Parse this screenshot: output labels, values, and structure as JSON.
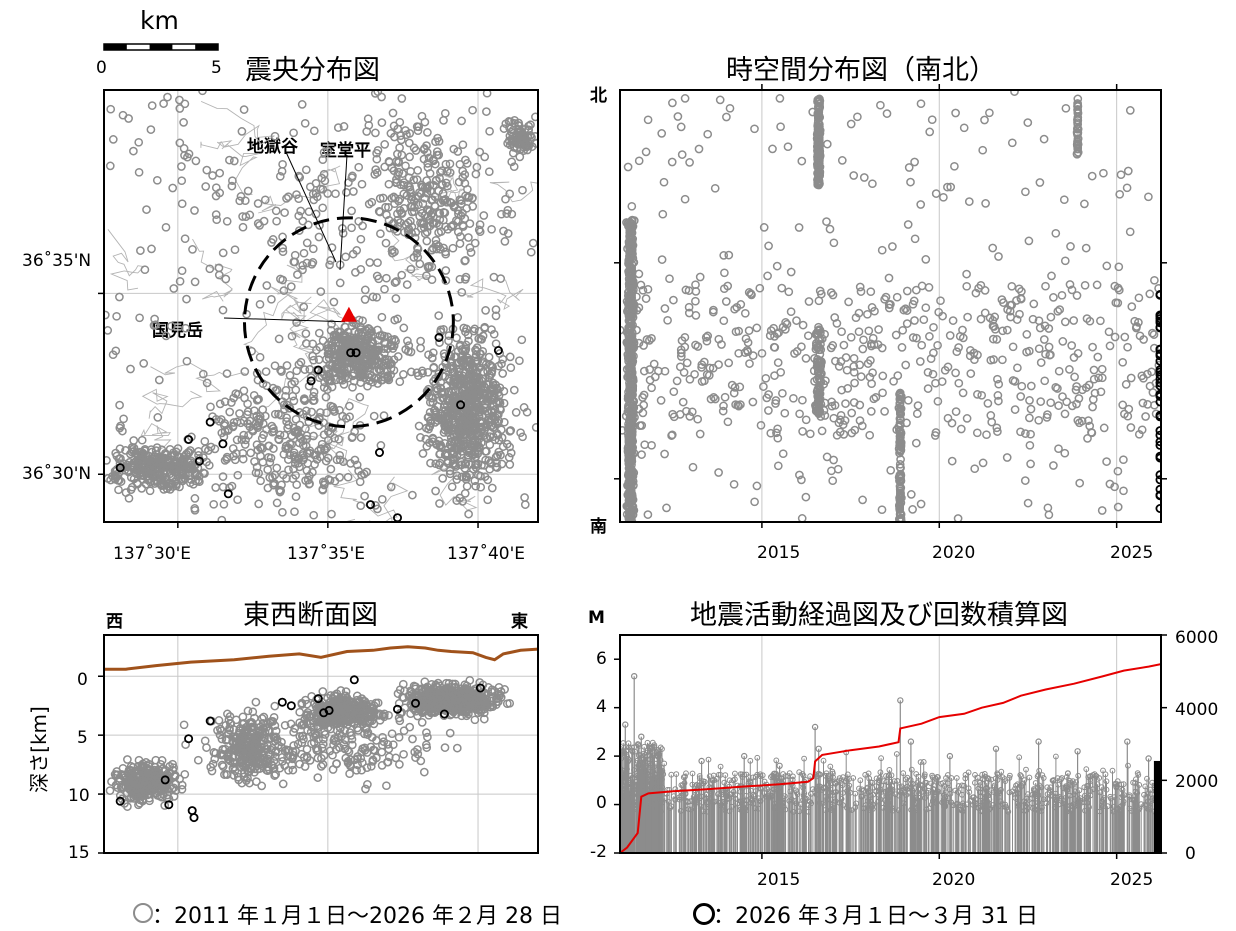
{
  "scalebar": {
    "unit": "km",
    "start": "0",
    "end": "5"
  },
  "legend": {
    "period1": "：2011 年１月１日～2026 年２月 28 日",
    "period2": "：2026 年３月１日～３月 31 日",
    "period1_color": "#8c8c8c",
    "period2_color": "#000000"
  },
  "colors": {
    "gray": "#8c8c8c",
    "red": "#e60000",
    "brown": "#a0521b",
    "grid": "#c8c8c8"
  },
  "chart_data": [
    {
      "id": "epicenter",
      "type": "scatter",
      "title": "震央分布図",
      "x_tick_labels": [
        "137˚30'E",
        "137˚35'E",
        "137˚40'E"
      ],
      "y_tick_labels": [
        "36˚35'N",
        "36˚30'N"
      ],
      "xlim_lon": [
        137.459,
        137.7
      ],
      "ylim_lat": [
        36.478,
        36.677
      ],
      "labels": {
        "jigokudani": "地獄谷",
        "murodo": "室堂平",
        "kunimi": "国見岳"
      },
      "volcano": {
        "lon": 137.595,
        "lat": 36.573
      },
      "circle_center": {
        "lon": 137.595,
        "lat": 36.57
      },
      "circle_radius_deg_lon": 0.058,
      "clusters": [
        {
          "lon": 137.66,
          "lat": 36.53,
          "w": 0.03,
          "h": 0.05,
          "n": 700
        },
        {
          "lon": 137.6,
          "lat": 36.555,
          "w": 0.035,
          "h": 0.02,
          "n": 350
        },
        {
          "lon": 137.64,
          "lat": 36.625,
          "w": 0.04,
          "h": 0.05,
          "n": 250
        },
        {
          "lon": 137.49,
          "lat": 36.503,
          "w": 0.04,
          "h": 0.015,
          "n": 300
        },
        {
          "lon": 137.56,
          "lat": 36.52,
          "w": 0.06,
          "h": 0.05,
          "n": 300
        },
        {
          "lon": 137.69,
          "lat": 36.655,
          "w": 0.012,
          "h": 0.012,
          "n": 80
        },
        {
          "lon": 137.58,
          "lat": 36.62,
          "w": 0.12,
          "h": 0.06,
          "n": 140
        }
      ],
      "recent_points": [
        [
          137.468,
          36.503
        ],
        [
          137.512,
          36.506
        ],
        [
          137.506,
          36.516
        ],
        [
          137.518,
          36.524
        ],
        [
          137.525,
          36.514
        ],
        [
          137.528,
          36.491
        ],
        [
          137.574,
          36.543
        ],
        [
          137.578,
          36.548
        ],
        [
          137.596,
          36.556
        ],
        [
          137.599,
          36.556
        ],
        [
          137.612,
          36.51
        ],
        [
          137.622,
          36.48
        ],
        [
          137.607,
          36.486
        ],
        [
          137.645,
          36.563
        ],
        [
          137.657,
          36.532
        ],
        [
          137.678,
          36.557
        ]
      ]
    },
    {
      "id": "spacetime",
      "type": "scatter",
      "title": "時空間分布図（南北）",
      "x_ticks": [
        2015,
        2020,
        2025
      ],
      "xlim": [
        2011.0,
        2026.25
      ],
      "y_top_label": "北",
      "y_bottom_label": "南",
      "swarms": [
        {
          "t": 2011.3,
          "dt": 0.25,
          "y0": 0.0,
          "y1": 0.7,
          "n": 550
        },
        {
          "t": 2016.6,
          "dt": 0.12,
          "y0": 0.78,
          "y1": 0.98,
          "n": 180
        },
        {
          "t": 2018.9,
          "dt": 0.1,
          "y0": 0.0,
          "y1": 0.3,
          "n": 100
        },
        {
          "t": 2016.6,
          "dt": 0.25,
          "y0": 0.25,
          "y1": 0.45,
          "n": 80
        },
        {
          "t": 2023.9,
          "dt": 0.06,
          "y0": 0.85,
          "y1": 0.98,
          "n": 40
        }
      ]
    },
    {
      "id": "ew_section",
      "type": "scatter",
      "title": "東西断面図",
      "left_label": "西",
      "right_label": "東",
      "ylabel": "深さ[km]",
      "y_ticks": [
        0,
        5,
        10,
        15
      ],
      "ylim": [
        -3.5,
        15
      ],
      "xlim_lon": [
        137.459,
        137.7
      ],
      "topography_km": [
        [
          0,
          -0.6
        ],
        [
          0.05,
          -0.6
        ],
        [
          0.12,
          -0.9
        ],
        [
          0.2,
          -1.2
        ],
        [
          0.3,
          -1.4
        ],
        [
          0.38,
          -1.7
        ],
        [
          0.45,
          -1.9
        ],
        [
          0.5,
          -1.6
        ],
        [
          0.56,
          -2.1
        ],
        [
          0.62,
          -2.2
        ],
        [
          0.66,
          -2.4
        ],
        [
          0.7,
          -2.5
        ],
        [
          0.74,
          -2.4
        ],
        [
          0.77,
          -2.2
        ],
        [
          0.8,
          -2.1
        ],
        [
          0.85,
          -2.0
        ],
        [
          0.88,
          -1.6
        ],
        [
          0.9,
          -1.4
        ],
        [
          0.92,
          -1.9
        ],
        [
          0.96,
          -2.2
        ],
        [
          1.0,
          -2.3
        ]
      ],
      "recent_points": [
        [
          137.468,
          10.6
        ],
        [
          137.493,
          8.8
        ],
        [
          137.495,
          10.9
        ],
        [
          137.506,
          5.3
        ],
        [
          137.508,
          11.4
        ],
        [
          137.509,
          12.0
        ],
        [
          137.518,
          3.8
        ],
        [
          137.558,
          2.2
        ],
        [
          137.563,
          2.5
        ],
        [
          137.578,
          1.9
        ],
        [
          137.581,
          3.1
        ],
        [
          137.584,
          2.9
        ],
        [
          137.598,
          0.3
        ],
        [
          137.622,
          2.8
        ],
        [
          137.632,
          2.3
        ],
        [
          137.648,
          3.2
        ],
        [
          137.668,
          1.0
        ]
      ]
    },
    {
      "id": "mt",
      "type": "bar",
      "title": "地震活動経過図及び回数積算図",
      "ylabel_left": "M",
      "x_ticks": [
        2015,
        2020,
        2025
      ],
      "xlim": [
        2011.0,
        2026.25
      ],
      "y_ticks_left": [
        -2,
        0,
        2,
        4,
        6
      ],
      "ylim_left": [
        -2,
        7
      ],
      "y_ticks_right": [
        0,
        2000,
        4000,
        6000
      ],
      "ylim_right": [
        0,
        6000
      ],
      "cumulative": [
        [
          2011.0,
          0
        ],
        [
          2011.2,
          150
        ],
        [
          2011.5,
          550
        ],
        [
          2011.6,
          1550
        ],
        [
          2011.8,
          1640
        ],
        [
          2012.5,
          1700
        ],
        [
          2013.5,
          1760
        ],
        [
          2014.5,
          1830
        ],
        [
          2015.5,
          1890
        ],
        [
          2016.3,
          1960
        ],
        [
          2016.45,
          2060
        ],
        [
          2016.5,
          2520
        ],
        [
          2016.7,
          2700
        ],
        [
          2017.5,
          2830
        ],
        [
          2018.3,
          2930
        ],
        [
          2018.85,
          3050
        ],
        [
          2018.9,
          3430
        ],
        [
          2019.5,
          3560
        ],
        [
          2020.0,
          3740
        ],
        [
          2020.7,
          3830
        ],
        [
          2021.2,
          4000
        ],
        [
          2021.8,
          4130
        ],
        [
          2022.3,
          4330
        ],
        [
          2023.0,
          4500
        ],
        [
          2023.8,
          4660
        ],
        [
          2024.6,
          4860
        ],
        [
          2025.2,
          5020
        ],
        [
          2025.9,
          5130
        ],
        [
          2026.25,
          5200
        ]
      ],
      "peaks": [
        [
          2011.4,
          5.3
        ],
        [
          2011.15,
          3.3
        ],
        [
          2011.6,
          2.8
        ],
        [
          2013.3,
          1.8
        ],
        [
          2014.5,
          2.0
        ],
        [
          2015.5,
          1.6
        ],
        [
          2016.5,
          3.2
        ],
        [
          2016.6,
          2.3
        ],
        [
          2018.9,
          4.3
        ],
        [
          2019.2,
          2.6
        ],
        [
          2020.3,
          2.0
        ],
        [
          2021.6,
          2.3
        ],
        [
          2022.8,
          2.6
        ],
        [
          2023.9,
          2.2
        ],
        [
          2025.3,
          2.6
        ],
        [
          2025.9,
          1.9
        ]
      ]
    }
  ]
}
